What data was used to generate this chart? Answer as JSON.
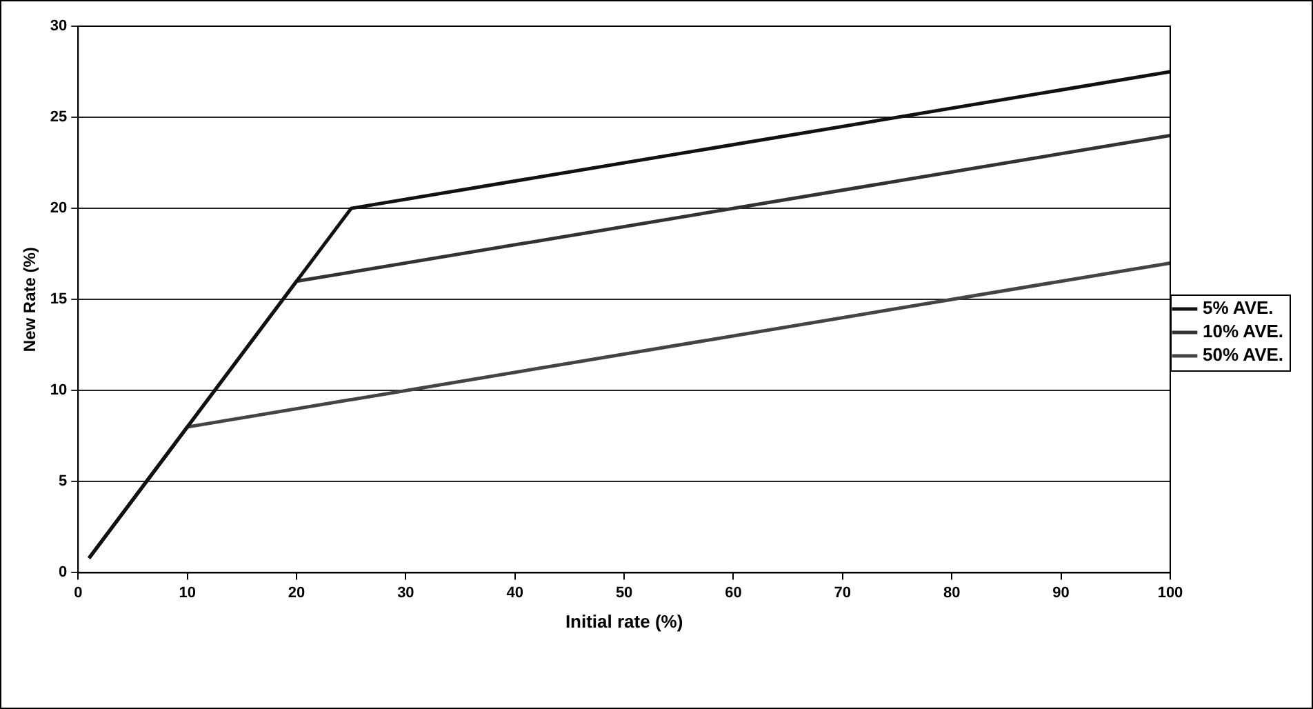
{
  "chart_data": {
    "type": "line",
    "xlabel": "Initial rate (%)",
    "ylabel": "New Rate (%)",
    "xlim": [
      0,
      100
    ],
    "xticks": [
      0,
      10,
      20,
      30,
      40,
      50,
      60,
      70,
      80,
      90,
      100
    ],
    "ylim": [
      0,
      30
    ],
    "yticks": [
      0,
      5,
      10,
      15,
      20,
      25,
      30
    ],
    "grid": "y",
    "legend": "right",
    "marker": "none",
    "line_style": "solid",
    "series": [
      {
        "name": "5% AVE.",
        "color": "#111111",
        "x": [
          1,
          25,
          100
        ],
        "values": [
          0.8,
          20,
          27.5
        ]
      },
      {
        "name": "10% AVE.",
        "color": "#333333",
        "x": [
          1,
          20,
          100
        ],
        "values": [
          0.8,
          16,
          24
        ]
      },
      {
        "name": "50% AVE.",
        "color": "#444444",
        "x": [
          1,
          10,
          100
        ],
        "values": [
          0.8,
          8,
          17
        ]
      }
    ]
  }
}
